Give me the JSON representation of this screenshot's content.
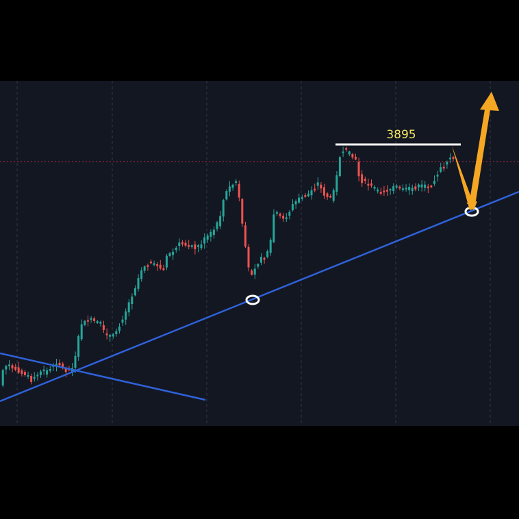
{
  "chart_data": {
    "type": "candlestick",
    "title": "",
    "xlabel": "",
    "ylabel": "",
    "grid": true,
    "resistance": {
      "label": "3895",
      "value": 3895
    },
    "colors": {
      "background": "#131722",
      "up": "#26a69a",
      "down": "#ef5350",
      "trendline": "#2f62d9",
      "resistance_line": "#ffffff",
      "label_text": "#f5e663",
      "arrow": "#f5a623",
      "circle": "#ffffff",
      "price_line": "#f23645",
      "grid": "#363a45"
    },
    "icons": [
      "support-circle-icon",
      "support-circle-icon",
      "projection-arrow-icon"
    ]
  }
}
